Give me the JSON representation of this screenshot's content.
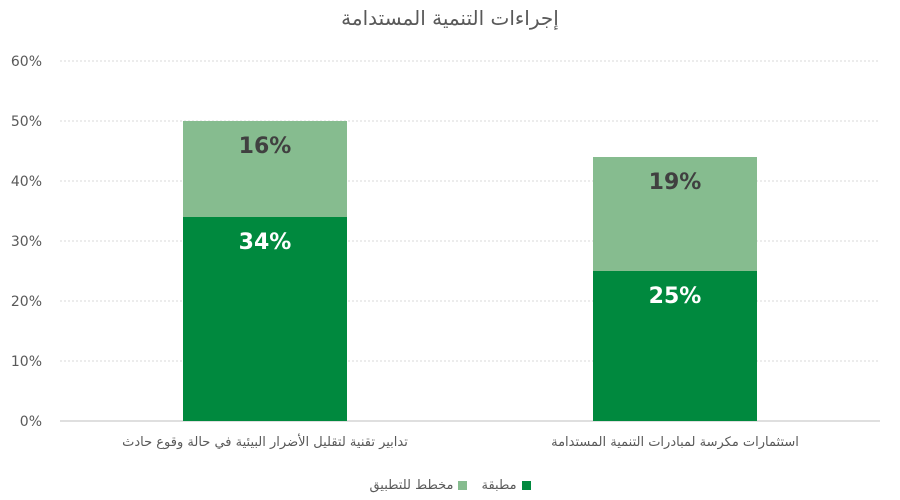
{
  "chart_data": {
    "type": "bar",
    "stacked": true,
    "title": "إجراءات التنمية المستدامة",
    "categories": [
      "تدابير تقنية لتقليل الأضرار البيئية في حالة وقوع حادث",
      "استثمارات مكرسة لمبادرات التنمية المستدامة"
    ],
    "series": [
      {
        "name": "مطبقة",
        "values": [
          34,
          25
        ],
        "labels": [
          "34%",
          "25%"
        ],
        "color": "#00893E"
      },
      {
        "name": "مخطط للتطبيق",
        "values": [
          16,
          19
        ],
        "labels": [
          "16%",
          "19%"
        ],
        "color": "#86BC8F"
      }
    ],
    "y_ticks": [
      "0%",
      "10%",
      "20%",
      "30%",
      "40%",
      "50%",
      "60%"
    ],
    "ylim": [
      0,
      60
    ],
    "grid": true,
    "legend_position": "bottom"
  }
}
